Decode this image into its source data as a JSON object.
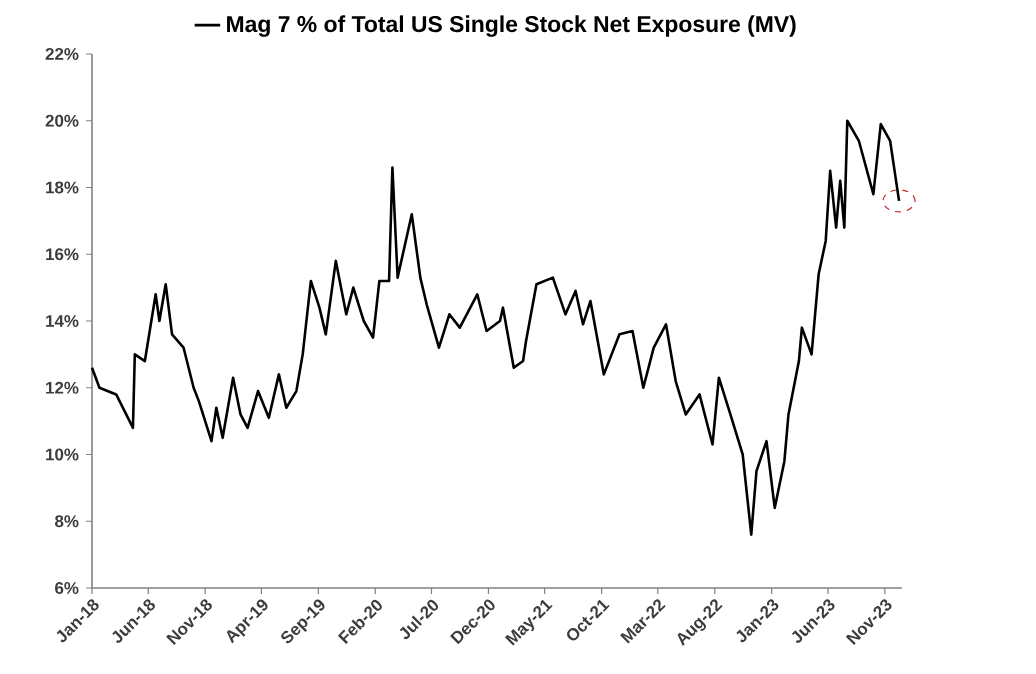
{
  "chart_data": {
    "type": "line",
    "legend": "top",
    "series": [
      {
        "name": "Mag 7 % of Total US Single Stock Net Exposure (MV)",
        "color": "#000000",
        "x": [
          "2018-01-01",
          "2018-01-21",
          "2018-03-07",
          "2018-04-21",
          "2018-04-26",
          "2018-05-23",
          "2018-06-21",
          "2018-07-01",
          "2018-07-18",
          "2018-08-04",
          "2018-09-04",
          "2018-10-01",
          "2018-10-15",
          "2018-11-18",
          "2018-12-01",
          "2018-12-18",
          "2019-01-15",
          "2019-02-04",
          "2019-02-23",
          "2019-03-23",
          "2019-04-21",
          "2019-05-18",
          "2019-06-07",
          "2019-07-04",
          "2019-07-21",
          "2019-08-12",
          "2019-09-04",
          "2019-09-21",
          "2019-10-18",
          "2019-11-15",
          "2019-12-04",
          "2020-01-01",
          "2020-01-26",
          "2020-02-12",
          "2020-03-09",
          "2020-03-18",
          "2020-04-01",
          "2020-04-15",
          "2020-05-09",
          "2020-06-01",
          "2020-06-18",
          "2020-07-21",
          "2020-08-18",
          "2020-09-15",
          "2020-11-01",
          "2020-11-26",
          "2021-01-01",
          "2021-01-09",
          "2021-02-07",
          "2021-03-04",
          "2021-03-12",
          "2021-04-09",
          "2021-05-23",
          "2021-06-26",
          "2021-07-23",
          "2021-08-12",
          "2021-09-01",
          "2021-10-07",
          "2021-11-18",
          "2021-12-23",
          "2022-01-21",
          "2022-02-18",
          "2022-03-23",
          "2022-04-18",
          "2022-05-15",
          "2022-06-21",
          "2022-07-26",
          "2022-08-12",
          "2022-09-12",
          "2022-10-15",
          "2022-11-07",
          "2022-11-21",
          "2022-12-18",
          "2023-01-09",
          "2023-02-04",
          "2023-02-15",
          "2023-03-15",
          "2023-03-23",
          "2023-04-18",
          "2023-05-07",
          "2023-05-26",
          "2023-06-07",
          "2023-06-23",
          "2023-07-04",
          "2023-07-15",
          "2023-07-23",
          "2023-08-23",
          "2023-10-01",
          "2023-10-21",
          "2023-11-15",
          "2023-12-09"
        ],
        "values": [
          12.6,
          12.0,
          11.8,
          10.8,
          13.0,
          12.8,
          14.8,
          14.0,
          15.1,
          13.6,
          13.2,
          12.0,
          11.6,
          10.4,
          11.4,
          10.5,
          12.3,
          11.2,
          10.8,
          11.9,
          11.1,
          12.4,
          11.4,
          11.9,
          13.0,
          15.2,
          14.4,
          13.6,
          15.8,
          14.2,
          15.0,
          14.0,
          13.5,
          15.2,
          15.2,
          18.6,
          15.3,
          16.0,
          17.2,
          15.3,
          14.5,
          13.2,
          14.2,
          13.8,
          14.8,
          13.7,
          14.0,
          14.4,
          12.6,
          12.8,
          13.4,
          15.1,
          15.3,
          14.2,
          14.9,
          13.9,
          14.6,
          12.4,
          13.6,
          13.7,
          12.0,
          13.2,
          13.9,
          12.2,
          11.2,
          11.8,
          10.3,
          12.3,
          11.2,
          10.0,
          7.6,
          9.5,
          10.4,
          8.4,
          9.8,
          11.2,
          12.8,
          13.8,
          13.0,
          15.4,
          16.4,
          18.5,
          16.8,
          18.2,
          16.8,
          20.0,
          19.4,
          17.8,
          19.9,
          19.4,
          17.6
        ]
      }
    ],
    "xlim": [
      "2018-01-01",
      "2023-12-17"
    ],
    "xticks": [
      {
        "value": "2018-01",
        "label": "Jan-18"
      },
      {
        "value": "2018-06",
        "label": "Jun-18"
      },
      {
        "value": "2018-11",
        "label": "Nov-18"
      },
      {
        "value": "2019-04",
        "label": "Apr-19"
      },
      {
        "value": "2019-09",
        "label": "Sep-19"
      },
      {
        "value": "2020-02",
        "label": "Feb-20"
      },
      {
        "value": "2020-07",
        "label": "Jul-20"
      },
      {
        "value": "2020-12",
        "label": "Dec-20"
      },
      {
        "value": "2021-05",
        "label": "May-21"
      },
      {
        "value": "2021-10",
        "label": "Oct-21"
      },
      {
        "value": "2022-03",
        "label": "Mar-22"
      },
      {
        "value": "2022-08",
        "label": "Aug-22"
      },
      {
        "value": "2023-01",
        "label": "Jan-23"
      },
      {
        "value": "2023-06",
        "label": "Jun-23"
      },
      {
        "value": "2023-11",
        "label": "Nov-23"
      }
    ],
    "ylim": [
      6,
      22
    ],
    "yticks": [
      {
        "value": 6,
        "label": "6%"
      },
      {
        "value": 8,
        "label": "8%"
      },
      {
        "value": 10,
        "label": "10%"
      },
      {
        "value": 12,
        "label": "12%"
      },
      {
        "value": 14,
        "label": "14%"
      },
      {
        "value": 16,
        "label": "16%"
      },
      {
        "value": 18,
        "label": "18%"
      },
      {
        "value": 20,
        "label": "20%"
      },
      {
        "value": 22,
        "label": "22%"
      }
    ],
    "grid": false,
    "marker": "none",
    "line_style": "solid"
  }
}
